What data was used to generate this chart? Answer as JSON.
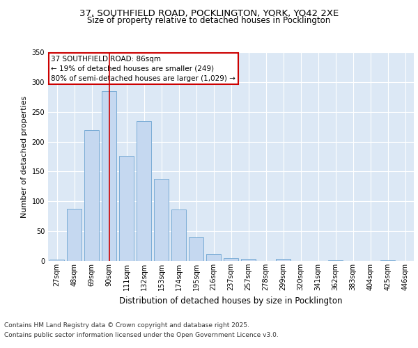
{
  "title_line1": "37, SOUTHFIELD ROAD, POCKLINGTON, YORK, YO42 2XE",
  "title_line2": "Size of property relative to detached houses in Pocklington",
  "xlabel": "Distribution of detached houses by size in Pocklington",
  "ylabel": "Number of detached properties",
  "categories": [
    "27sqm",
    "48sqm",
    "69sqm",
    "90sqm",
    "111sqm",
    "132sqm",
    "153sqm",
    "174sqm",
    "195sqm",
    "216sqm",
    "237sqm",
    "257sqm",
    "278sqm",
    "299sqm",
    "320sqm",
    "341sqm",
    "362sqm",
    "383sqm",
    "404sqm",
    "425sqm",
    "446sqm"
  ],
  "values": [
    2,
    87,
    219,
    285,
    176,
    234,
    138,
    86,
    40,
    12,
    5,
    4,
    0,
    3,
    0,
    0,
    1,
    0,
    0,
    1,
    0
  ],
  "bar_color": "#c5d8f0",
  "bar_edge_color": "#7aacd6",
  "plot_bg_color": "#dce8f5",
  "fig_bg_color": "#ffffff",
  "vline_x_index": 3,
  "vline_color": "#cc0000",
  "annotation_title": "37 SOUTHFIELD ROAD: 86sqm",
  "annotation_line2": "← 19% of detached houses are smaller (249)",
  "annotation_line3": "80% of semi-detached houses are larger (1,029) →",
  "annotation_box_edgecolor": "#cc0000",
  "annotation_bg": "#ffffff",
  "ylim": [
    0,
    350
  ],
  "yticks": [
    0,
    50,
    100,
    150,
    200,
    250,
    300,
    350
  ],
  "title_fontsize": 9.5,
  "subtitle_fontsize": 8.5,
  "ylabel_fontsize": 8,
  "xlabel_fontsize": 8.5,
  "tick_fontsize": 7,
  "annotation_fontsize": 7.5,
  "footer_fontsize": 6.5,
  "footer_line1": "Contains HM Land Registry data © Crown copyright and database right 2025.",
  "footer_line2": "Contains public sector information licensed under the Open Government Licence v3.0."
}
